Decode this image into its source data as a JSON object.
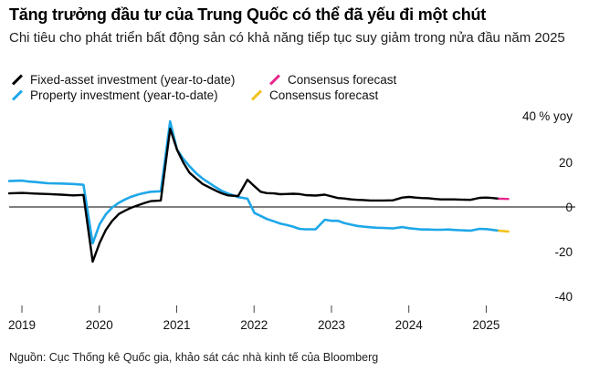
{
  "chart_data": {
    "type": "line",
    "title": "Tăng trưởng đầu tư của Trung Quốc có thể đã yếu đi một chút",
    "subtitle": "Chi tiêu cho phát triển bất động sản có khả năng tiếp tục suy giảm trong nửa đầu năm 2025",
    "ylabel_unit": "% yoy",
    "ylim": [
      -45,
      45
    ],
    "xlim": [
      2019.0,
      2025.75
    ],
    "y_ticks": [
      {
        "value": 40,
        "label": "40"
      },
      {
        "value": 20,
        "label": "20"
      },
      {
        "value": 0,
        "label": "0"
      },
      {
        "value": -20,
        "label": "-20"
      },
      {
        "value": -40,
        "label": "-40"
      }
    ],
    "x_ticks": [
      {
        "value": 2019,
        "label": "2019"
      },
      {
        "value": 2020,
        "label": "2020"
      },
      {
        "value": 2021,
        "label": "2021"
      },
      {
        "value": 2022,
        "label": "2022"
      },
      {
        "value": 2023,
        "label": "2023"
      },
      {
        "value": 2024,
        "label": "2024"
      },
      {
        "value": 2025,
        "label": "2025"
      }
    ],
    "legend": [
      {
        "label": "Fixed-asset investment (year-to-date)",
        "color": "#000000"
      },
      {
        "label": "Consensus forecast",
        "color": "#e8288c"
      },
      {
        "label": "Property investment (year-to-date)",
        "color": "#1ea7e8"
      },
      {
        "label": "Consensus forecast",
        "color": "#f2c21b"
      }
    ],
    "series": [
      {
        "name": "Fixed-asset investment (year-to-date)",
        "color": "#000000",
        "points": [
          [
            2019.0,
            6.1
          ],
          [
            2019.17,
            6.3
          ],
          [
            2019.33,
            6.0
          ],
          [
            2019.5,
            5.8
          ],
          [
            2019.67,
            5.5
          ],
          [
            2019.83,
            5.2
          ],
          [
            2019.96,
            5.4
          ],
          [
            2020.08,
            -24.5
          ],
          [
            2020.17,
            -16.1
          ],
          [
            2020.25,
            -10.3
          ],
          [
            2020.33,
            -6.3
          ],
          [
            2020.42,
            -3.1
          ],
          [
            2020.5,
            -1.6
          ],
          [
            2020.58,
            -0.3
          ],
          [
            2020.67,
            0.8
          ],
          [
            2020.75,
            1.8
          ],
          [
            2020.83,
            2.6
          ],
          [
            2020.96,
            2.9
          ],
          [
            2021.08,
            35.0
          ],
          [
            2021.17,
            25.6
          ],
          [
            2021.25,
            19.9
          ],
          [
            2021.33,
            15.4
          ],
          [
            2021.42,
            12.6
          ],
          [
            2021.5,
            10.3
          ],
          [
            2021.58,
            8.9
          ],
          [
            2021.67,
            7.3
          ],
          [
            2021.75,
            6.1
          ],
          [
            2021.83,
            5.2
          ],
          [
            2021.96,
            4.9
          ],
          [
            2022.08,
            12.2
          ],
          [
            2022.17,
            9.3
          ],
          [
            2022.25,
            6.8
          ],
          [
            2022.33,
            6.2
          ],
          [
            2022.42,
            6.1
          ],
          [
            2022.5,
            5.7
          ],
          [
            2022.58,
            5.8
          ],
          [
            2022.67,
            5.9
          ],
          [
            2022.75,
            5.8
          ],
          [
            2022.83,
            5.3
          ],
          [
            2022.96,
            5.1
          ],
          [
            2023.08,
            5.5
          ],
          [
            2023.17,
            4.7
          ],
          [
            2023.25,
            4.0
          ],
          [
            2023.33,
            3.8
          ],
          [
            2023.42,
            3.4
          ],
          [
            2023.5,
            3.2
          ],
          [
            2023.58,
            3.1
          ],
          [
            2023.67,
            2.9
          ],
          [
            2023.75,
            2.9
          ],
          [
            2023.83,
            2.9
          ],
          [
            2023.96,
            3.0
          ],
          [
            2024.08,
            4.2
          ],
          [
            2024.17,
            4.5
          ],
          [
            2024.25,
            4.2
          ],
          [
            2024.33,
            4.0
          ],
          [
            2024.42,
            3.9
          ],
          [
            2024.5,
            3.6
          ],
          [
            2024.58,
            3.4
          ],
          [
            2024.67,
            3.4
          ],
          [
            2024.75,
            3.4
          ],
          [
            2024.83,
            3.3
          ],
          [
            2024.96,
            3.2
          ],
          [
            2025.08,
            4.1
          ],
          [
            2025.17,
            4.2
          ],
          [
            2025.25,
            4.0
          ],
          [
            2025.33,
            3.7
          ]
        ]
      },
      {
        "name": "Consensus forecast",
        "color": "#e8288c",
        "points": [
          [
            2025.33,
            3.7
          ],
          [
            2025.45,
            3.6
          ]
        ]
      },
      {
        "name": "Property investment (year-to-date)",
        "color": "#1ea7e8",
        "points": [
          [
            2019.0,
            11.6
          ],
          [
            2019.17,
            11.8
          ],
          [
            2019.25,
            11.4
          ],
          [
            2019.33,
            11.2
          ],
          [
            2019.42,
            10.9
          ],
          [
            2019.5,
            10.6
          ],
          [
            2019.67,
            10.5
          ],
          [
            2019.83,
            10.3
          ],
          [
            2019.96,
            9.9
          ],
          [
            2020.08,
            -16.3
          ],
          [
            2020.17,
            -7.7
          ],
          [
            2020.25,
            -3.3
          ],
          [
            2020.33,
            -0.3
          ],
          [
            2020.42,
            1.9
          ],
          [
            2020.5,
            3.4
          ],
          [
            2020.58,
            4.6
          ],
          [
            2020.67,
            5.6
          ],
          [
            2020.75,
            6.3
          ],
          [
            2020.83,
            6.8
          ],
          [
            2020.96,
            7.0
          ],
          [
            2021.08,
            38.3
          ],
          [
            2021.17,
            25.6
          ],
          [
            2021.25,
            21.6
          ],
          [
            2021.33,
            18.3
          ],
          [
            2021.42,
            15.0
          ],
          [
            2021.5,
            12.7
          ],
          [
            2021.58,
            10.9
          ],
          [
            2021.67,
            8.8
          ],
          [
            2021.75,
            7.2
          ],
          [
            2021.83,
            6.0
          ],
          [
            2021.96,
            4.4
          ],
          [
            2022.08,
            3.7
          ],
          [
            2022.17,
            -2.7
          ],
          [
            2022.25,
            -4.0
          ],
          [
            2022.33,
            -5.4
          ],
          [
            2022.42,
            -6.4
          ],
          [
            2022.5,
            -7.4
          ],
          [
            2022.58,
            -8.0
          ],
          [
            2022.67,
            -8.8
          ],
          [
            2022.75,
            -9.8
          ],
          [
            2022.83,
            -10.0
          ],
          [
            2022.96,
            -10.0
          ],
          [
            2023.08,
            -5.7
          ],
          [
            2023.17,
            -6.2
          ],
          [
            2023.25,
            -6.2
          ],
          [
            2023.33,
            -7.2
          ],
          [
            2023.42,
            -7.9
          ],
          [
            2023.5,
            -8.5
          ],
          [
            2023.58,
            -8.8
          ],
          [
            2023.67,
            -9.1
          ],
          [
            2023.75,
            -9.3
          ],
          [
            2023.83,
            -9.4
          ],
          [
            2023.96,
            -9.6
          ],
          [
            2024.08,
            -9.0
          ],
          [
            2024.17,
            -9.5
          ],
          [
            2024.25,
            -9.8
          ],
          [
            2024.33,
            -10.1
          ],
          [
            2024.42,
            -10.1
          ],
          [
            2024.5,
            -10.2
          ],
          [
            2024.58,
            -10.2
          ],
          [
            2024.67,
            -10.1
          ],
          [
            2024.75,
            -10.3
          ],
          [
            2024.83,
            -10.4
          ],
          [
            2024.96,
            -10.6
          ],
          [
            2025.08,
            -9.8
          ],
          [
            2025.17,
            -9.9
          ],
          [
            2025.25,
            -10.3
          ],
          [
            2025.33,
            -10.6
          ]
        ]
      },
      {
        "name": "Consensus forecast",
        "color": "#f2c21b",
        "points": [
          [
            2025.33,
            -10.6
          ],
          [
            2025.45,
            -11.0
          ]
        ]
      }
    ],
    "grid": false,
    "legend_position": "top-left",
    "source": "Nguồn: Cục Thống kê Quốc gia, khảo sát các nhà kinh tế của Bloomberg"
  }
}
